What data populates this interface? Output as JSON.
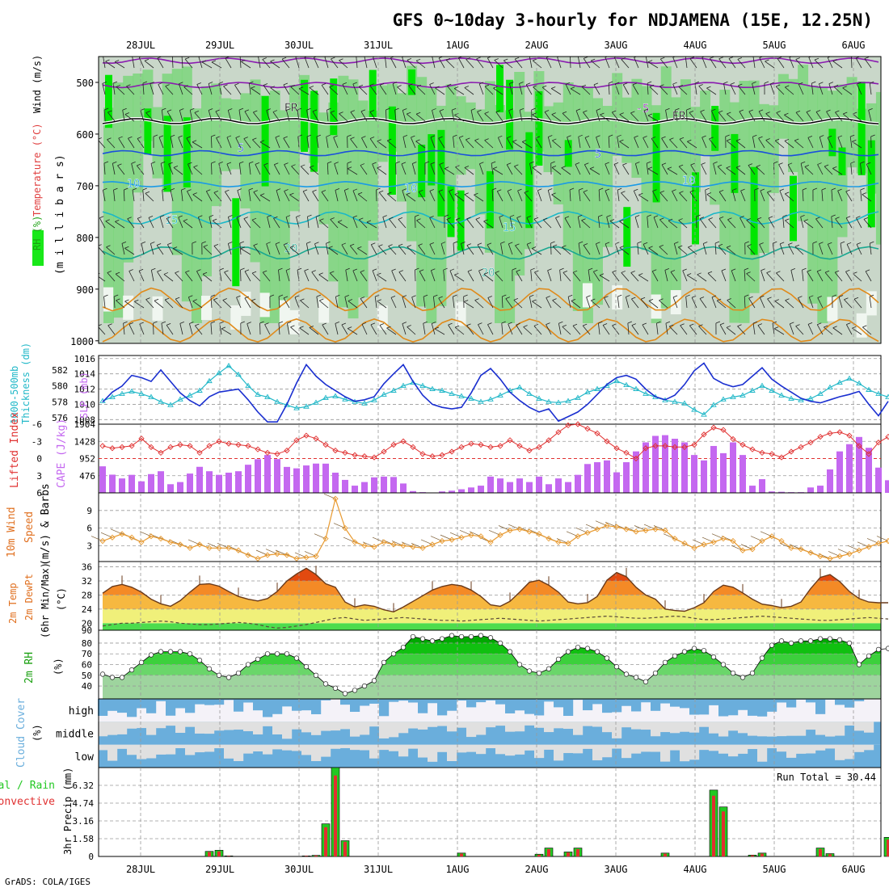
{
  "title": "GFS 0~10day 3-hourly for NDJAMENA (15E, 12.25N)",
  "footer": "GrADS: COLA/IGES",
  "colors": {
    "rh_light": "#c9d7c9",
    "rh_mid": "#7cd67c",
    "rh_high": "#00e600",
    "temp_purple": "#8a1ab0",
    "temp_blue": "#1a4fdc",
    "temp_lblue": "#1a9ae6",
    "temp_cyan": "#1ab8c8",
    "temp_teal": "#1aa890",
    "temp_orange": "#e08a1a",
    "slp": "#1a2fd0",
    "thickness": "#22b8c8",
    "cape": "#c468f0",
    "lifted": "#e03030",
    "wind_line": "#e89a30",
    "cloud_blue": "#6aaedc",
    "cloud_grey": "#e0e0e0",
    "rain_total": "#22c822",
    "rain_conv": "#e03030"
  },
  "chart_data": [
    {
      "type": "heatmap",
      "panel": "upper-air",
      "ylabel": [
        "RH (%)",
        "Temperature (°C)",
        "Wind (m/s)",
        "(m i l l i b a r s)"
      ],
      "y_ticks": [
        "500",
        "600",
        "700",
        "800",
        "900",
        "1000"
      ],
      "ylim": [
        450,
        1005
      ],
      "x_ticks": [
        "28JUL",
        "29JUL",
        "30JUL",
        "31JUL",
        "1AUG",
        "2AUG",
        "3AUG",
        "4AUG",
        "5AUG",
        "6AUG"
      ],
      "isotherm_labels": [
        "-5",
        "-5",
        "FR",
        "FR",
        "5",
        "5",
        "10",
        "10",
        "10",
        "15",
        "15",
        "20",
        "20"
      ]
    },
    {
      "type": "line",
      "panel": "slp-thickness",
      "ylabel_left": [
        "1000-500mb",
        "Thickness (dm)"
      ],
      "ylabel_right": "SLP (mb)",
      "left_ticks": [
        "576",
        "578",
        "580",
        "582"
      ],
      "right_ticks": [
        "1008",
        "1010",
        "1012",
        "1014",
        "1016"
      ],
      "ylim_left": [
        575.2,
        583.8
      ],
      "ylim_right": [
        1007.4,
        1016.4
      ],
      "series": [
        {
          "name": "SLP",
          "values": [
            1010.3,
            1011.6,
            1012.4,
            1013.8,
            1013.5,
            1013.0,
            1014.5,
            1013.0,
            1011.5,
            1010.5,
            1009.8,
            1011.0,
            1011.6,
            1011.8,
            1012.0,
            1010.6,
            1009.0,
            1007.7,
            1007.7,
            1010.0,
            1012.8,
            1015.2,
            1013.7,
            1012.6,
            1011.8,
            1011.0,
            1010.4,
            1010.6,
            1011.0,
            1012.7,
            1014.0,
            1015.2,
            1013.0,
            1011.2,
            1010.0,
            1009.6,
            1009.4,
            1009.6,
            1011.5,
            1013.8,
            1014.7,
            1013.3,
            1011.6,
            1010.5,
            1009.6,
            1009.0,
            1009.4,
            1007.8,
            1008.4,
            1009.0,
            1010.0,
            1011.3,
            1012.6,
            1013.5,
            1013.8,
            1013.3,
            1012.0,
            1011.0,
            1010.6,
            1011.2,
            1012.6,
            1014.4,
            1015.4,
            1013.4,
            1012.7,
            1012.3,
            1012.6,
            1013.7,
            1014.8,
            1013.3,
            1012.4,
            1011.6,
            1010.8,
            1010.4,
            1010.2,
            1010.6,
            1011.0,
            1011.3,
            1011.7,
            1010.0,
            1008.5,
            1010.4
          ]
        },
        {
          "name": "Thickness",
          "values": [
            578.1,
            578.6,
            579.0,
            579.3,
            579.0,
            578.6,
            578.0,
            577.6,
            578.3,
            578.8,
            579.4,
            580.6,
            581.6,
            582.5,
            581.4,
            580.0,
            578.9,
            578.6,
            578.0,
            577.6,
            577.2,
            577.4,
            577.9,
            578.5,
            578.7,
            578.3,
            578.0,
            577.8,
            578.2,
            578.9,
            579.4,
            580.0,
            580.4,
            580.0,
            579.6,
            579.4,
            579.0,
            578.7,
            578.4,
            578.0,
            578.3,
            578.8,
            579.4,
            579.8,
            579.0,
            578.4,
            578.0,
            577.9,
            578.1,
            578.5,
            579.2,
            579.6,
            580.0,
            580.6,
            580.1,
            579.6,
            579.0,
            578.6,
            578.2,
            578.0,
            577.8,
            577.0,
            576.4,
            577.6,
            578.3,
            578.6,
            578.8,
            579.4,
            580.0,
            579.4,
            578.8,
            578.4,
            578.2,
            578.4,
            579.0,
            579.8,
            580.4,
            580.9,
            580.3,
            579.5,
            579.0,
            578.6
          ]
        }
      ]
    },
    {
      "type": "bar",
      "panel": "cape-lifted-index",
      "ylabel_left": "Lifted Index",
      "ylabel_right": "CAPE (J/kg)",
      "li_ticks": [
        "-6",
        "-3",
        "0",
        "3",
        "6"
      ],
      "cape_ticks": [
        "476",
        "952",
        "1428",
        "1904"
      ],
      "ylim_cape": [
        0,
        1904
      ],
      "ylim_li": [
        6,
        -6
      ],
      "series": [
        {
          "name": "CAPE",
          "values": [
            736,
            505,
            400,
            500,
            320,
            520,
            600,
            240,
            300,
            535,
            722,
            600,
            500,
            560,
            600,
            780,
            932,
            1050,
            936,
            720,
            680,
            760,
            812,
            810,
            560,
            360,
            200,
            300,
            430,
            450,
            440,
            260,
            50,
            20,
            10,
            40,
            60,
            100,
            150,
            200,
            450,
            400,
            300,
            400,
            300,
            450,
            240,
            400,
            300,
            500,
            800,
            850,
            900,
            570,
            850,
            1150,
            1400,
            1580,
            1600,
            1500,
            1400,
            1050,
            900,
            1300,
            1100,
            1400,
            1050,
            200,
            380,
            40,
            30,
            20,
            20,
            150,
            200,
            650,
            1150,
            1350,
            1550,
            1250,
            700,
            350
          ]
        },
        {
          "name": "LI",
          "values": [
            -2.2,
            -1.8,
            -2.0,
            -2.2,
            -3.5,
            -2.0,
            -1.0,
            -2.0,
            -2.4,
            -2.2,
            -1.0,
            -2.2,
            -3.0,
            -2.6,
            -2.4,
            -2.2,
            -1.6,
            -1.0,
            -0.8,
            -1.4,
            -3.2,
            -4.0,
            -3.5,
            -2.4,
            -1.4,
            -1.0,
            -0.6,
            -0.4,
            -0.2,
            -1.2,
            -2.4,
            -3.0,
            -2.0,
            -0.8,
            -0.4,
            -0.6,
            -1.2,
            -2.0,
            -2.6,
            -2.4,
            -2.0,
            -2.2,
            -3.2,
            -2.2,
            -1.4,
            -2.0,
            -3.2,
            -4.6,
            -5.8,
            -6.0,
            -5.2,
            -4.4,
            -3.0,
            -1.8,
            -1.0,
            0.0,
            -1.8,
            -2.2,
            -2.2,
            -2.0,
            -2.0,
            -2.4,
            -4.2,
            -5.4,
            -5.0,
            -3.4,
            -2.4,
            -1.6,
            -1.0,
            -0.8,
            -0.2,
            -1.2,
            -2.0,
            -2.8,
            -3.8,
            -4.4,
            -4.6,
            -4.0,
            -2.2,
            -0.8,
            -2.8,
            -3.8
          ]
        }
      ]
    },
    {
      "type": "line",
      "panel": "10m-wind",
      "ylabel": [
        "10m Wind",
        "Speed",
        "(m/s) & Barbs"
      ],
      "ticks": [
        "3",
        "6",
        "9"
      ],
      "ylim": [
        0.3,
        12
      ],
      "series": [
        {
          "name": "10m Wind Speed",
          "values": [
            3.8,
            4.4,
            5.0,
            4.4,
            3.6,
            4.6,
            4.2,
            3.6,
            3.2,
            2.6,
            3.2,
            2.6,
            2.6,
            2.6,
            2.2,
            1.4,
            0.8,
            1.4,
            1.6,
            1.4,
            0.8,
            1.0,
            1.2,
            4.2,
            11.0,
            6.0,
            3.6,
            3.0,
            2.8,
            3.6,
            3.2,
            3.0,
            2.8,
            2.6,
            3.2,
            3.8,
            4.0,
            4.4,
            4.8,
            4.6,
            3.6,
            4.8,
            5.6,
            5.8,
            5.4,
            5.0,
            4.2,
            3.6,
            3.4,
            4.6,
            5.2,
            5.8,
            6.4,
            6.2,
            5.8,
            5.4,
            5.6,
            5.8,
            5.6,
            4.2,
            3.4,
            2.6,
            3.2,
            3.6,
            4.2,
            3.8,
            2.2,
            2.4,
            3.8,
            4.6,
            3.8,
            2.6,
            2.4,
            1.8,
            1.2,
            0.8,
            1.2,
            1.6,
            2.2,
            2.8,
            3.4,
            3.8
          ]
        }
      ]
    },
    {
      "type": "area",
      "panel": "2m-temp",
      "ylabel": [
        "2m Temp",
        "2m DewPt",
        "(6hr Min/Max)",
        "(°C)"
      ],
      "ticks": [
        "36",
        "32",
        "28",
        "24",
        "20",
        "90"
      ],
      "ylim": [
        18,
        37.5
      ],
      "series": [
        {
          "name": "2m Temp",
          "values": [
            28.5,
            30.4,
            31.0,
            30.2,
            28.8,
            26.8,
            25.5,
            24.8,
            26.4,
            28.8,
            31.0,
            31.2,
            30.5,
            29.0,
            27.6,
            26.8,
            26.3,
            27.0,
            29.0,
            32.0,
            34.0,
            35.6,
            33.8,
            31.2,
            30.2,
            26.0,
            24.6,
            25.2,
            24.8,
            23.8,
            23.2,
            24.6,
            26.2,
            27.8,
            29.4,
            30.4,
            31.0,
            30.6,
            29.4,
            27.6,
            25.2,
            24.8,
            26.2,
            28.8,
            31.6,
            32.2,
            30.8,
            28.8,
            26.0,
            25.5,
            25.8,
            27.6,
            32.2,
            34.4,
            33.2,
            30.2,
            28.0,
            26.8,
            24.0,
            23.6,
            23.4,
            24.4,
            25.8,
            29.0,
            30.8,
            30.2,
            28.6,
            26.8,
            25.4,
            25.0,
            24.4,
            24.8,
            26.0,
            29.8,
            33.0,
            33.8,
            31.8,
            29.0,
            27.0,
            26.0,
            25.8,
            25.8
          ]
        },
        {
          "name": "2m DewPt",
          "values": [
            19.2,
            19.6,
            20.0,
            20.0,
            20.2,
            20.4,
            20.6,
            20.4,
            20.0,
            19.8,
            19.6,
            19.6,
            19.8,
            20.0,
            20.2,
            20.0,
            19.6,
            19.0,
            18.6,
            18.8,
            19.2,
            19.6,
            20.2,
            20.8,
            21.4,
            21.6,
            21.2,
            20.8,
            21.0,
            21.2,
            21.4,
            21.6,
            21.4,
            21.2,
            21.0,
            20.8,
            20.8,
            20.6,
            20.8,
            21.0,
            21.2,
            21.4,
            21.2,
            21.0,
            20.8,
            20.6,
            20.8,
            21.0,
            21.2,
            21.4,
            21.6,
            21.8,
            22.0,
            21.8,
            21.6,
            21.4,
            21.4,
            21.6,
            21.8,
            22.0,
            21.8,
            21.4,
            21.0,
            21.0,
            21.2,
            21.4,
            21.6,
            21.8,
            22.0,
            21.8,
            21.6,
            21.4,
            21.2,
            21.0,
            20.8,
            20.8,
            21.0,
            21.2,
            21.4,
            21.6,
            21.4,
            21.2
          ]
        }
      ]
    },
    {
      "type": "area",
      "panel": "2m-rh",
      "ylabel": [
        "2m RH",
        "(%)"
      ],
      "ticks": [
        "40",
        "50",
        "60",
        "70",
        "80"
      ],
      "ylim": [
        28,
        92
      ],
      "series": [
        {
          "name": "2m RH",
          "values": [
            51,
            48,
            48,
            55,
            62,
            69,
            72,
            72,
            72,
            70,
            64,
            56,
            50,
            48,
            52,
            60,
            65,
            70,
            70,
            70,
            66,
            58,
            50,
            42,
            38,
            33,
            36,
            40,
            45,
            62,
            70,
            76,
            86,
            84,
            82,
            84,
            87,
            86,
            86,
            87,
            85,
            80,
            72,
            60,
            54,
            52,
            56,
            65,
            72,
            76,
            75,
            72,
            66,
            58,
            51,
            48,
            44,
            52,
            62,
            68,
            72,
            75,
            73,
            67,
            60,
            52,
            48,
            52,
            66,
            78,
            82,
            80,
            82,
            82,
            84,
            84,
            83,
            80,
            60,
            68,
            74,
            75
          ]
        }
      ]
    },
    {
      "type": "heatmap",
      "panel": "cloud-cover",
      "ylabel": [
        "Cloud Cover",
        "(%)"
      ],
      "rows": [
        "high",
        "middle",
        "low"
      ]
    },
    {
      "type": "bar",
      "panel": "precip",
      "ylabel": [
        "Total / Rain",
        "Convective",
        "3hr Precip (mm)"
      ],
      "ticks": [
        "0",
        "1.58",
        "3.16",
        "4.74",
        "6.32"
      ],
      "ylim": [
        0,
        7.9
      ],
      "run_total_label": "Run Total = 30.44",
      "series": [
        {
          "name": "Total",
          "values": [
            0,
            0,
            0,
            0,
            0,
            0,
            0,
            0,
            0,
            0,
            0,
            0.45,
            0.55,
            0.05,
            0,
            0,
            0,
            0,
            0,
            0,
            0,
            0.05,
            0.1,
            2.9,
            7.9,
            1.4,
            0,
            0,
            0,
            0,
            0,
            0,
            0,
            0,
            0,
            0,
            0,
            0.3,
            0,
            0,
            0,
            0,
            0,
            0,
            0,
            0.2,
            0.75,
            0,
            0.4,
            0.75,
            0,
            0,
            0,
            0,
            0,
            0,
            0,
            0,
            0.3,
            0,
            0,
            0,
            0,
            5.9,
            4.4,
            0,
            0,
            0.12,
            0.3,
            0,
            0,
            0,
            0,
            0,
            0.75,
            0.25,
            0,
            0,
            0,
            0,
            0,
            1.7
          ]
        },
        {
          "name": "Convective",
          "values": [
            0,
            0,
            0,
            0,
            0,
            0,
            0,
            0,
            0,
            0,
            0,
            0.4,
            0.45,
            0.04,
            0,
            0,
            0,
            0,
            0,
            0,
            0,
            0.04,
            0.08,
            2.6,
            7.2,
            1.3,
            0,
            0,
            0,
            0,
            0,
            0,
            0,
            0,
            0,
            0,
            0,
            0.25,
            0,
            0,
            0,
            0,
            0,
            0,
            0,
            0.15,
            0.65,
            0,
            0.35,
            0.65,
            0,
            0,
            0,
            0,
            0,
            0,
            0,
            0,
            0.25,
            0,
            0,
            0,
            0,
            5.4,
            4.0,
            0,
            0,
            0.1,
            0.25,
            0,
            0,
            0,
            0,
            0,
            0.65,
            0.2,
            0,
            0,
            0,
            0,
            0,
            1.5
          ]
        }
      ]
    }
  ]
}
